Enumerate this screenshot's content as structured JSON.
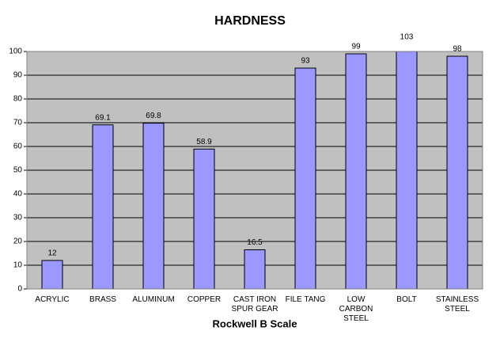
{
  "chart_data": {
    "type": "bar",
    "title": "HARDNESS",
    "x_label": "Rockwell B Scale",
    "categories": [
      "ACRYLIC",
      "BRASS",
      "ALUMINUM",
      "COPPER",
      "CAST IRON SPUR GEAR",
      "FILE TANG",
      "LOW CARBON STEEL",
      "BOLT",
      "STAINLESS STEEL"
    ],
    "values": [
      12,
      69.1,
      69.8,
      58.9,
      16.5,
      93,
      99,
      103,
      98
    ],
    "color": "#9999ff",
    "ylim": [
      0,
      100
    ],
    "yticks": [
      0,
      10,
      20,
      30,
      40,
      50,
      60,
      70,
      80,
      90,
      100
    ],
    "grid": true
  }
}
